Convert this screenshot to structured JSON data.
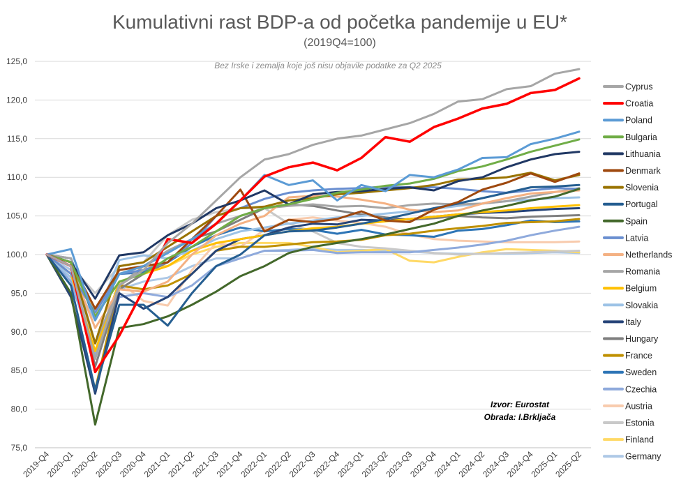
{
  "chart_data": {
    "type": "line",
    "title": "Kumulativni rast BDP-a od početka pandemije u EU*",
    "subtitle": "(2019Q4=100)",
    "note": "Bez Irske i zemalja koje još nisu objavile podatke za Q2 2025",
    "source_line1": "Izvor: Eurostat",
    "source_line2": "Obrada: I.Brkljača",
    "ylim": [
      75,
      125
    ],
    "yticks": [
      "75,0",
      "80,0",
      "85,0",
      "90,0",
      "95,0",
      "100,0",
      "105,0",
      "110,0",
      "115,0",
      "120,0",
      "125,0"
    ],
    "ytick_values": [
      75,
      80,
      85,
      90,
      95,
      100,
      105,
      110,
      115,
      120,
      125
    ],
    "categories": [
      "2019-Q4",
      "2020-Q1",
      "2020-Q2",
      "2020-Q3",
      "2020-Q4",
      "2021-Q1",
      "2021-Q2",
      "2021-Q3",
      "2021-Q4",
      "2022-Q1",
      "2022-Q2",
      "2022-Q3",
      "2022-Q4",
      "2023-Q1",
      "2023-Q2",
      "2023-Q3",
      "2023-Q4",
      "2024-Q1",
      "2024-Q2",
      "2024-Q3",
      "2024-Q4",
      "2025-Q1",
      "2025-Q2"
    ],
    "legend_position": "right",
    "series": [
      {
        "name": "Cyprus",
        "color": "#a6a6a6",
        "values": [
          100,
          98.5,
          86.5,
          96.0,
          98.0,
          101.5,
          104.0,
          107.0,
          110.0,
          112.3,
          113.0,
          114.2,
          115.0,
          115.4,
          116.2,
          117.0,
          118.2,
          119.8,
          120.1,
          121.4,
          121.8,
          123.4,
          124.0
        ]
      },
      {
        "name": "Croatia",
        "color": "#ff0000",
        "values": [
          100,
          98.5,
          84.8,
          89.5,
          95.5,
          102.0,
          101.5,
          104.0,
          107.0,
          110.1,
          111.3,
          111.9,
          110.9,
          112.5,
          115.2,
          114.6,
          116.5,
          117.6,
          118.9,
          119.5,
          120.9,
          121.3,
          122.8
        ]
      },
      {
        "name": "Poland",
        "color": "#5b9bd5",
        "values": [
          100,
          100.7,
          91.5,
          97.5,
          98.5,
          100.2,
          102.0,
          104.0,
          107.0,
          110.3,
          109.0,
          109.6,
          107.0,
          109.0,
          108.2,
          110.3,
          110.0,
          111.0,
          112.5,
          112.6,
          114.3,
          115.0,
          115.9
        ]
      },
      {
        "name": "Bulgaria",
        "color": "#70ad47",
        "values": [
          100,
          99.0,
          92.0,
          96.5,
          97.5,
          99.5,
          101.0,
          103.0,
          105.0,
          106.0,
          106.5,
          107.2,
          108.0,
          108.4,
          108.9,
          109.2,
          109.8,
          110.8,
          111.4,
          112.3,
          113.3,
          114.1,
          114.9
        ]
      },
      {
        "name": "Lithuania",
        "color": "#203864",
        "values": [
          100,
          99.0,
          94.3,
          99.9,
          100.3,
          102.5,
          104.0,
          106.0,
          107.0,
          108.3,
          106.5,
          107.8,
          108.1,
          108.2,
          108.5,
          108.7,
          108.3,
          109.5,
          110.0,
          111.3,
          112.3,
          113.0,
          113.3
        ]
      },
      {
        "name": "Denmark",
        "color": "#9e480e",
        "values": [
          100,
          99.0,
          93.0,
          98.0,
          98.5,
          99.0,
          102.0,
          105.0,
          108.4,
          103.0,
          104.5,
          104.2,
          104.6,
          105.6,
          104.4,
          104.2,
          105.8,
          106.8,
          108.4,
          109.3,
          110.5,
          109.4,
          110.5
        ]
      },
      {
        "name": "Slovenia",
        "color": "#997300",
        "values": [
          100,
          99.0,
          88.5,
          98.5,
          99.0,
          101.0,
          103.0,
          105.0,
          106.0,
          106.2,
          107.0,
          107.3,
          107.8,
          108.0,
          108.3,
          108.6,
          109.0,
          109.7,
          109.8,
          110.0,
          110.6,
          109.6,
          110.3
        ]
      },
      {
        "name": "Portugal",
        "color": "#255e91",
        "values": [
          100,
          96.0,
          82.5,
          93.5,
          93.5,
          90.8,
          95.0,
          98.5,
          100.0,
          102.5,
          103.0,
          103.1,
          103.5,
          104.0,
          104.6,
          105.3,
          106.0,
          106.6,
          107.3,
          108.0,
          108.7,
          108.8,
          109.0
        ]
      },
      {
        "name": "Spain",
        "color": "#43682b",
        "values": [
          100,
          95.0,
          78.0,
          90.5,
          91.0,
          92.0,
          93.5,
          95.2,
          97.2,
          98.5,
          100.2,
          101.0,
          101.5,
          102.0,
          102.6,
          103.3,
          104.0,
          105.0,
          105.7,
          106.3,
          107.0,
          107.5,
          108.5
        ]
      },
      {
        "name": "Latvia",
        "color": "#698ed0",
        "values": [
          100,
          97.5,
          92.5,
          97.5,
          98.0,
          99.0,
          101.5,
          105.0,
          106.0,
          107.2,
          108.0,
          108.3,
          108.5,
          108.6,
          108.8,
          108.7,
          108.7,
          108.5,
          108.2,
          108.0,
          108.3,
          108.6,
          108.5
        ]
      },
      {
        "name": "Netherlands",
        "color": "#f4b183",
        "values": [
          100,
          98.5,
          90.5,
          95.5,
          95.2,
          96.5,
          100.0,
          102.5,
          104.0,
          105.0,
          107.4,
          107.6,
          107.5,
          107.1,
          106.6,
          105.8,
          105.5,
          105.7,
          106.6,
          107.3,
          107.9,
          108.1,
          108.3
        ]
      },
      {
        "name": "Romania",
        "color": "#a5a5a5",
        "values": [
          100,
          99.5,
          88.5,
          96.0,
          98.5,
          100.5,
          102.0,
          104.0,
          105.0,
          106.0,
          106.3,
          106.5,
          106.2,
          106.3,
          106.0,
          106.4,
          106.6,
          106.5,
          106.6,
          106.9,
          107.5,
          108.1,
          108.6
        ]
      },
      {
        "name": "Belgium",
        "color": "#ffc000",
        "values": [
          100,
          97.5,
          87.5,
          96.5,
          97.5,
          98.5,
          100.5,
          101.5,
          102.0,
          102.5,
          103.0,
          103.4,
          103.6,
          104.0,
          104.3,
          104.6,
          104.9,
          105.2,
          105.5,
          105.7,
          106.0,
          106.2,
          106.4
        ]
      },
      {
        "name": "Slovakia",
        "color": "#9dc3e6",
        "values": [
          100,
          97.0,
          91.5,
          99.3,
          99.9,
          99.5,
          100.5,
          102.0,
          103.0,
          103.5,
          104.0,
          104.4,
          104.8,
          105.0,
          105.3,
          105.6,
          105.9,
          106.3,
          106.6,
          106.9,
          107.1,
          107.3,
          107.4
        ]
      },
      {
        "name": "Italy",
        "color": "#264478",
        "values": [
          100,
          94.5,
          82.0,
          95.0,
          93.0,
          94.5,
          97.5,
          100.5,
          102.0,
          102.5,
          103.5,
          104.0,
          103.9,
          104.5,
          104.4,
          104.6,
          104.9,
          105.2,
          105.4,
          105.5,
          105.7,
          105.9,
          106.0
        ]
      },
      {
        "name": "Hungary",
        "color": "#7f7f7f",
        "values": [
          100,
          99.0,
          85.5,
          95.5,
          97.5,
          99.0,
          102.0,
          103.0,
          104.5,
          106.0,
          106.5,
          106.3,
          105.7,
          105.2,
          104.8,
          104.5,
          104.7,
          105.0,
          104.8,
          104.7,
          104.9,
          105.0,
          105.1
        ]
      },
      {
        "name": "France",
        "color": "#bf9000",
        "values": [
          100,
          94.5,
          82.5,
          96.0,
          95.5,
          96.0,
          97.5,
          100.5,
          101.0,
          101.0,
          101.3,
          101.6,
          101.7,
          101.9,
          102.5,
          102.7,
          103.1,
          103.4,
          103.7,
          104.1,
          104.2,
          104.3,
          104.6
        ]
      },
      {
        "name": "Sweden",
        "color": "#2e75b6",
        "values": [
          100,
          99.5,
          91.5,
          97.5,
          97.7,
          99.0,
          101.0,
          102.5,
          103.5,
          103.0,
          103.3,
          103.2,
          102.7,
          103.2,
          102.6,
          102.5,
          102.3,
          103.1,
          103.3,
          103.8,
          104.4,
          104.2,
          104.3
        ]
      },
      {
        "name": "Czechia",
        "color": "#8faadc",
        "values": [
          100,
          96.5,
          87.0,
          94.5,
          95.0,
          94.5,
          96.0,
          98.5,
          99.5,
          100.5,
          100.5,
          100.6,
          100.2,
          100.3,
          100.3,
          100.3,
          100.6,
          100.9,
          101.3,
          101.8,
          102.5,
          103.1,
          103.6
        ]
      },
      {
        "name": "Austria",
        "color": "#f8cbad",
        "values": [
          100,
          97.0,
          86.5,
          96.5,
          94.0,
          93.4,
          98.0,
          101.5,
          101.0,
          103.2,
          104.5,
          104.8,
          104.4,
          104.1,
          103.6,
          102.6,
          102.0,
          101.8,
          101.7,
          101.6,
          101.6,
          101.6,
          101.7
        ]
      },
      {
        "name": "Estonia",
        "color": "#c9c9c9",
        "values": [
          100,
          98.5,
          95.0,
          98.5,
          99.0,
          102.5,
          104.5,
          105.5,
          106.0,
          106.0,
          104.0,
          103.0,
          101.5,
          101.0,
          100.8,
          100.5,
          100.2,
          100.0,
          100.1,
          100.2,
          100.3,
          100.4,
          100.5
        ]
      },
      {
        "name": "Finland",
        "color": "#ffd966",
        "values": [
          100,
          98.5,
          92.5,
          97.5,
          98.5,
          98.5,
          100.0,
          101.0,
          101.5,
          101.5,
          101.5,
          101.0,
          100.3,
          100.5,
          100.7,
          99.2,
          99.0,
          99.7,
          100.3,
          100.7,
          100.6,
          100.5,
          100.3
        ]
      },
      {
        "name": "Germany",
        "color": "#adc8e6",
        "values": [
          100,
          98.0,
          88.5,
          95.5,
          96.5,
          97.0,
          98.5,
          99.5,
          99.5,
          100.5,
          100.6,
          100.8,
          100.6,
          100.6,
          100.5,
          100.4,
          100.2,
          100.1,
          100.1,
          100.1,
          100.2,
          100.3,
          100.2
        ]
      }
    ]
  }
}
